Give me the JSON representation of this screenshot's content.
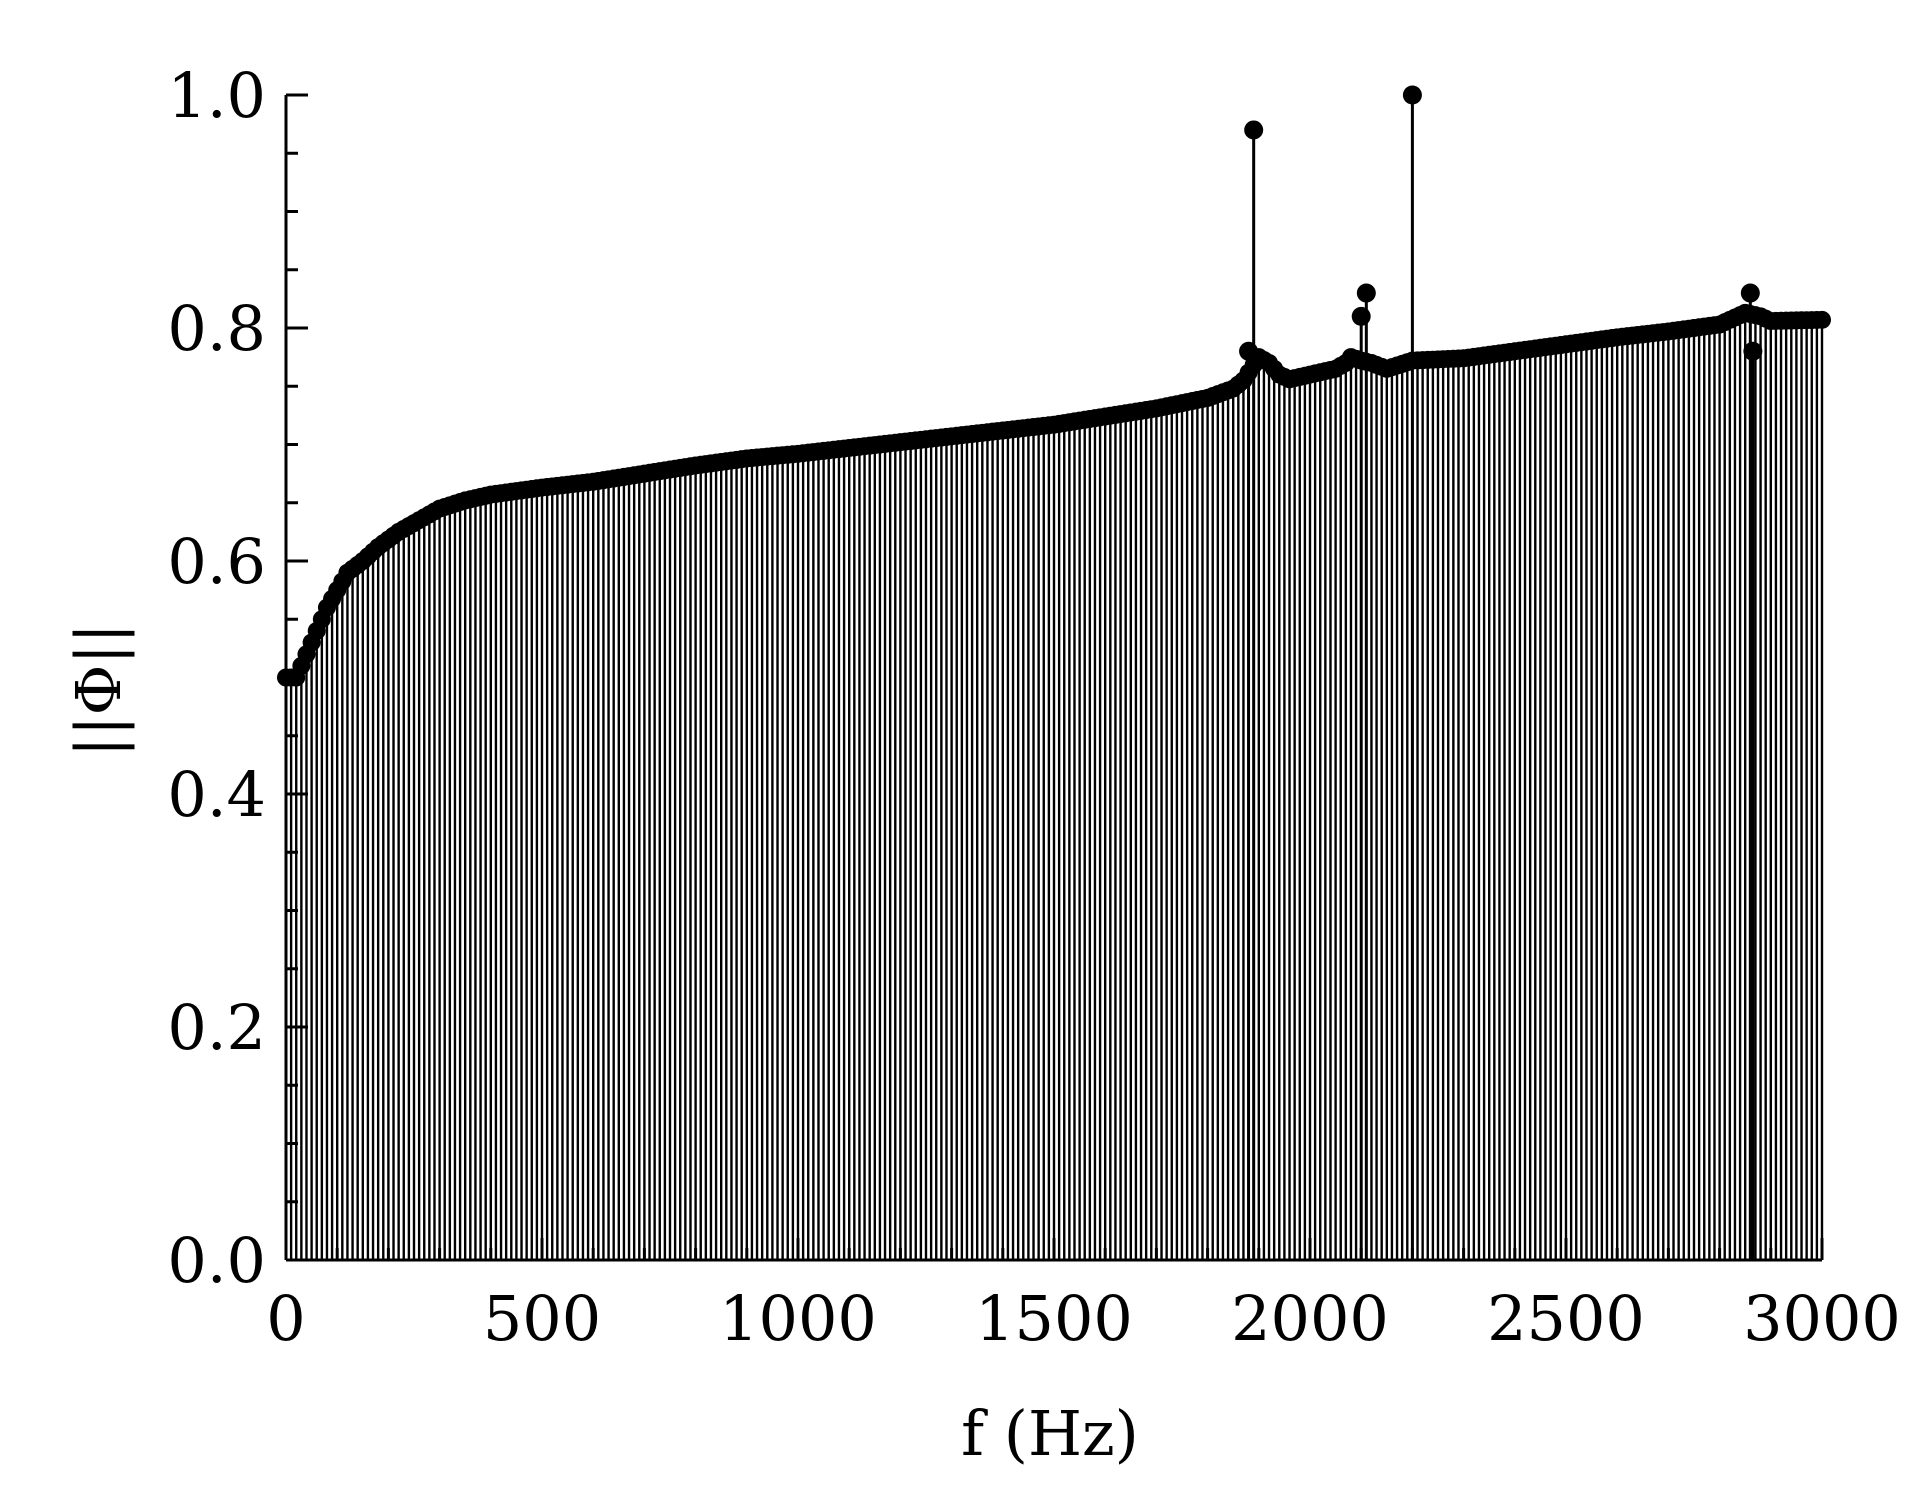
{
  "chart_data": {
    "type": "stem",
    "xlabel": "f  (Hz)",
    "ylabel": "||Φ||",
    "xlim": [
      0,
      3000
    ],
    "ylim": [
      0,
      1.0
    ],
    "x_ticks": [
      "0",
      "500",
      "1000",
      "1500",
      "2000",
      "2500",
      "3000"
    ],
    "y_ticks": [
      "0.0",
      "0.2",
      "0.4",
      "0.6",
      "0.8",
      "1.0"
    ],
    "grid": false,
    "legend": "none",
    "color": "#000000",
    "x_step_hz": 10,
    "envelope_points": [
      [
        0,
        0.5
      ],
      [
        20,
        0.5
      ],
      [
        40,
        0.52
      ],
      [
        60,
        0.54
      ],
      [
        80,
        0.56
      ],
      [
        100,
        0.575
      ],
      [
        120,
        0.59
      ],
      [
        150,
        0.6
      ],
      [
        180,
        0.612
      ],
      [
        220,
        0.625
      ],
      [
        300,
        0.645
      ],
      [
        350,
        0.652
      ],
      [
        400,
        0.657
      ],
      [
        500,
        0.663
      ],
      [
        600,
        0.668
      ],
      [
        700,
        0.675
      ],
      [
        800,
        0.682
      ],
      [
        900,
        0.688
      ],
      [
        1000,
        0.692
      ],
      [
        1100,
        0.697
      ],
      [
        1200,
        0.702
      ],
      [
        1300,
        0.707
      ],
      [
        1400,
        0.712
      ],
      [
        1500,
        0.717
      ],
      [
        1600,
        0.724
      ],
      [
        1700,
        0.731
      ],
      [
        1800,
        0.74
      ],
      [
        1850,
        0.748
      ],
      [
        1870,
        0.755
      ],
      [
        1900,
        0.775
      ],
      [
        1920,
        0.77
      ],
      [
        1940,
        0.76
      ],
      [
        1960,
        0.756
      ],
      [
        2000,
        0.76
      ],
      [
        2050,
        0.765
      ],
      [
        2070,
        0.77
      ],
      [
        2080,
        0.775
      ],
      [
        2100,
        0.772
      ],
      [
        2120,
        0.77
      ],
      [
        2150,
        0.765
      ],
      [
        2200,
        0.772
      ],
      [
        2300,
        0.774
      ],
      [
        2400,
        0.78
      ],
      [
        2500,
        0.786
      ],
      [
        2600,
        0.792
      ],
      [
        2700,
        0.797
      ],
      [
        2800,
        0.803
      ],
      [
        2850,
        0.813
      ],
      [
        2880,
        0.81
      ],
      [
        2900,
        0.806
      ],
      [
        3000,
        0.807
      ]
    ],
    "spikes": [
      {
        "x": 1890,
        "y": 0.97
      },
      {
        "x": 1880,
        "y": 0.78
      },
      {
        "x": 2100,
        "y": 0.81
      },
      {
        "x": 2110,
        "y": 0.83
      },
      {
        "x": 2200,
        "y": 1.0
      },
      {
        "x": 2860,
        "y": 0.83
      },
      {
        "x": 2865,
        "y": 0.78
      }
    ]
  }
}
